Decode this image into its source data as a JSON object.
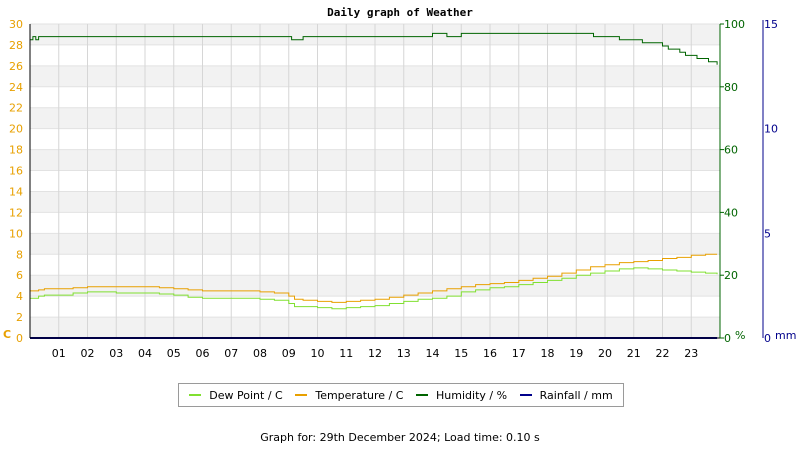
{
  "chart_data": {
    "type": "line",
    "title": "Daily graph of Weather",
    "x_ticks": [
      "01",
      "02",
      "03",
      "04",
      "05",
      "06",
      "07",
      "08",
      "09",
      "10",
      "11",
      "12",
      "13",
      "14",
      "15",
      "16",
      "17",
      "18",
      "19",
      "20",
      "21",
      "22",
      "23"
    ],
    "x_range": [
      0,
      24
    ],
    "axes": {
      "temperature": {
        "unit_label": "C",
        "range": [
          0,
          30
        ],
        "ticks": [
          0,
          2,
          4,
          6,
          8,
          10,
          12,
          14,
          16,
          18,
          20,
          22,
          24,
          26,
          28,
          30
        ],
        "color": "#e8a000"
      },
      "humidity": {
        "unit_label": "%",
        "range": [
          0,
          100
        ],
        "ticks": [
          0,
          20,
          40,
          60,
          80,
          100
        ],
        "color": "#006400"
      },
      "rainfall": {
        "unit_label": "mm",
        "range": [
          0,
          15
        ],
        "ticks": [
          0,
          5,
          10,
          15
        ],
        "color": "#00008b"
      }
    },
    "grid": true,
    "series": [
      {
        "name": "Dew Point / C",
        "axis": "temperature",
        "color": "#80e030",
        "x": [
          0,
          0.3,
          0.5,
          1,
          1.5,
          2,
          2.5,
          3,
          4,
          4.5,
          5,
          5.5,
          6,
          7,
          8,
          8.5,
          9,
          9.2,
          9.5,
          10,
          10.5,
          11,
          11.5,
          12,
          12.5,
          13,
          13.5,
          14,
          14.5,
          15,
          15.5,
          16,
          16.5,
          17,
          17.5,
          18,
          18.5,
          19,
          19.5,
          20,
          20.5,
          21,
          21.5,
          22,
          22.5,
          23,
          23.5,
          23.9
        ],
        "y": [
          3.8,
          4.0,
          4.1,
          4.1,
          4.3,
          4.4,
          4.4,
          4.3,
          4.3,
          4.2,
          4.1,
          3.9,
          3.8,
          3.8,
          3.7,
          3.6,
          3.3,
          3.0,
          3.0,
          2.9,
          2.8,
          2.9,
          3.0,
          3.1,
          3.3,
          3.5,
          3.7,
          3.8,
          4.0,
          4.4,
          4.6,
          4.8,
          4.9,
          5.1,
          5.3,
          5.5,
          5.7,
          6.0,
          6.2,
          6.4,
          6.6,
          6.7,
          6.6,
          6.5,
          6.4,
          6.3,
          6.2,
          6.1
        ]
      },
      {
        "name": "Temperature / C",
        "axis": "temperature",
        "color": "#e8a000",
        "x": [
          0,
          0.3,
          0.5,
          1,
          1.5,
          2,
          2.5,
          3,
          4,
          4.5,
          5,
          5.5,
          6,
          7,
          8,
          8.5,
          9,
          9.2,
          9.5,
          10,
          10.5,
          11,
          11.5,
          12,
          12.5,
          13,
          13.5,
          14,
          14.5,
          15,
          15.5,
          16,
          16.5,
          17,
          17.5,
          18,
          18.5,
          19,
          19.5,
          20,
          20.5,
          21,
          21.5,
          22,
          22.5,
          23,
          23.5,
          23.9
        ],
        "y": [
          4.5,
          4.6,
          4.7,
          4.7,
          4.8,
          4.9,
          4.9,
          4.9,
          4.9,
          4.8,
          4.7,
          4.6,
          4.5,
          4.5,
          4.4,
          4.3,
          4.0,
          3.7,
          3.6,
          3.5,
          3.4,
          3.5,
          3.6,
          3.7,
          3.9,
          4.1,
          4.3,
          4.5,
          4.7,
          4.9,
          5.1,
          5.2,
          5.3,
          5.5,
          5.7,
          5.9,
          6.2,
          6.5,
          6.8,
          7.0,
          7.2,
          7.3,
          7.4,
          7.6,
          7.7,
          7.9,
          8.0,
          8.0
        ]
      },
      {
        "name": "Humidity / %",
        "axis": "humidity",
        "color": "#006400",
        "x": [
          0,
          0.1,
          0.2,
          0.3,
          0.5,
          1,
          2,
          3,
          4,
          5,
          6,
          7,
          8,
          9,
          9.1,
          9.3,
          9.5,
          10,
          11,
          12,
          13,
          13.95,
          14.0,
          14.5,
          15.0,
          15.1,
          15.6,
          16,
          17,
          18,
          19,
          19.5,
          19.6,
          20,
          20.5,
          21,
          21.3,
          21.7,
          22,
          22.2,
          22.4,
          22.6,
          22.8,
          23,
          23.2,
          23.4,
          23.6,
          23.8,
          23.9
        ],
        "y": [
          95,
          96,
          95,
          96,
          96,
          96,
          96,
          96,
          96,
          96,
          96,
          96,
          96,
          96,
          95,
          95,
          96,
          96,
          96,
          96,
          96,
          96,
          97,
          96,
          97,
          97,
          97,
          97,
          97,
          97,
          97,
          97,
          96,
          96,
          95,
          95,
          94,
          94,
          93,
          92,
          92,
          91,
          90,
          90,
          89,
          89,
          88,
          88,
          87
        ]
      },
      {
        "name": "Rainfall / mm",
        "axis": "rainfall",
        "color": "#00008b",
        "x": [
          0,
          23.9
        ],
        "y": [
          0,
          0
        ]
      }
    ]
  },
  "footer": {
    "text": "Graph for: 29th December 2024; Load time: 0.10 s"
  }
}
